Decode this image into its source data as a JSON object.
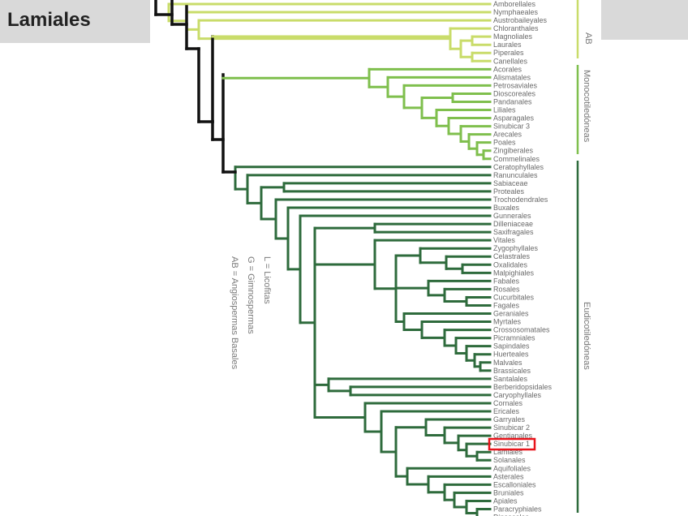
{
  "slide": {
    "title": "Lamiales"
  },
  "colors": {
    "basal": "#111111",
    "ab": "#c9dc6a",
    "mono": "#7fbf4d",
    "eudicot": "#2e6b3c",
    "highlight": "#e8141b",
    "slide_bar": "#d9d9d9"
  },
  "groups": {
    "ab": "AB",
    "mono": "Monocotiledóneas",
    "eudicot": "Eudicotiledóneas"
  },
  "legend": [
    "L = Licofitas",
    "G = Gimnospermas",
    "AB = Angiospermas Basales"
  ],
  "highlighted_taxon": "Lamiales",
  "taxa": {
    "ab": [
      "Amborellales",
      "Nymphaeales",
      "Austrobaileyales",
      "Chloranthales",
      "Magnoliales",
      "Laurales",
      "Piperales",
      "Canellales"
    ],
    "mono": [
      "Acorales",
      "Alismatales",
      "Petrosaviales",
      "Dioscoreales",
      "Pandanales",
      "Liliales",
      "Asparagales",
      "Sinubicar 3",
      "Arecales",
      "Poales",
      "Zingiberales",
      "Commelinales"
    ],
    "eudicot": [
      "Ceratophyllales",
      "Ranunculales",
      "Sabiaceae",
      "Proteales",
      "Trochodendrales",
      "Buxales",
      "Gunnerales",
      "Dilleniaceae",
      "Saxifragales",
      "Vitales",
      "Zygophyllales",
      "Celastrales",
      "Oxalidales",
      "Malpighiales",
      "Fabales",
      "Rosales",
      "Cucurbitales",
      "Fagales",
      "Geraniales",
      "Myrtales",
      "Crossosomatales",
      "Picramniales",
      "Sapindales",
      "Huerteales",
      "Malvales",
      "Brassicales",
      "Santalales",
      "Berberidopsidales",
      "Caryophyllales",
      "Cornales",
      "Ericales",
      "Garryales",
      "Sinubicar 2",
      "Gentianales",
      "Sinubicar 1",
      "Lamiales",
      "Solanales",
      "Aquifoliales",
      "Asterales",
      "Escalloniales",
      "Bruniales",
      "Apiales",
      "Paracryphiales",
      "Dipsacales"
    ]
  }
}
